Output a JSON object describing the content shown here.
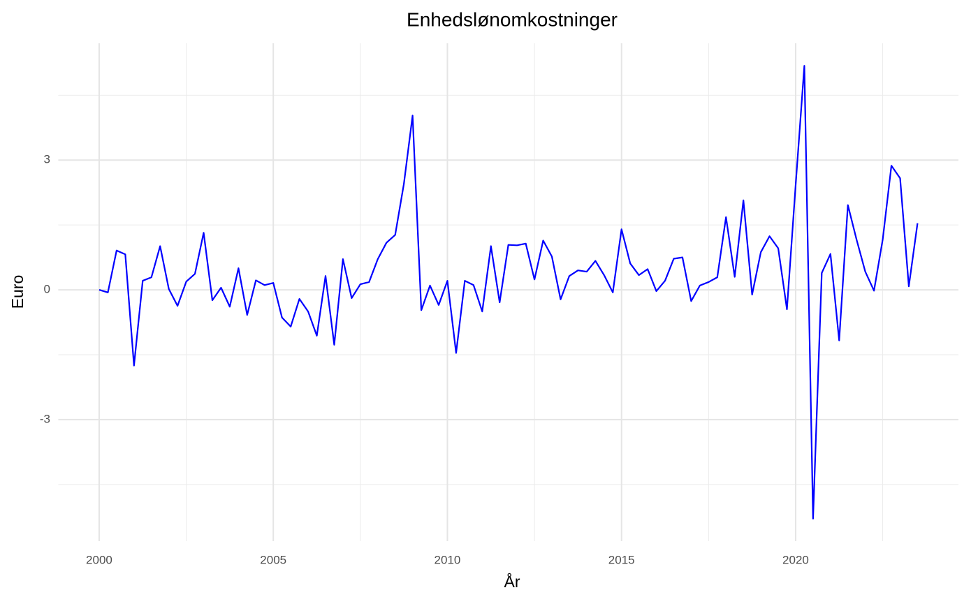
{
  "chart_data": {
    "type": "line",
    "title": "Enhedslønomkostninger",
    "x_label": "År",
    "y_label": "Euro",
    "x": [
      2000,
      2000.25,
      2000.5,
      2000.75,
      2001,
      2001.25,
      2001.5,
      2001.75,
      2002,
      2002.25,
      2002.5,
      2002.75,
      2003,
      2003.25,
      2003.5,
      2003.75,
      2004,
      2004.25,
      2004.5,
      2004.75,
      2005,
      2005.25,
      2005.5,
      2005.75,
      2006,
      2006.25,
      2006.5,
      2006.75,
      2007,
      2007.25,
      2007.5,
      2007.75,
      2008,
      2008.25,
      2008.5,
      2008.75,
      2009,
      2009.25,
      2009.5,
      2009.75,
      2010,
      2010.25,
      2010.5,
      2010.75,
      2011,
      2011.25,
      2011.5,
      2011.75,
      2012,
      2012.25,
      2012.5,
      2012.75,
      2013,
      2013.25,
      2013.5,
      2013.75,
      2014,
      2014.25,
      2014.5,
      2014.75,
      2015,
      2015.25,
      2015.5,
      2015.75,
      2016,
      2016.25,
      2016.5,
      2016.75,
      2017,
      2017.25,
      2017.5,
      2017.75,
      2018,
      2018.25,
      2018.5,
      2018.75,
      2019,
      2019.25,
      2019.5,
      2019.75,
      2020,
      2020.25,
      2020.5,
      2020.75,
      2021,
      2021.25,
      2021.5,
      2021.75,
      2022,
      2022.25,
      2022.5,
      2022.75,
      2023,
      2023.25,
      2023.5
    ],
    "series": [
      {
        "color": "#0000ff",
        "values": [
          0,
          -0.06,
          0.91,
          0.82,
          -1.75,
          0.21,
          0.29,
          1.01,
          0.02,
          -0.37,
          0.19,
          0.37,
          1.32,
          -0.24,
          0.05,
          -0.39,
          0.5,
          -0.58,
          0.22,
          0.11,
          0.16,
          -0.64,
          -0.85,
          -0.21,
          -0.5,
          -1.06,
          0.32,
          -1.27,
          0.71,
          -0.19,
          0.13,
          0.18,
          0.71,
          1.09,
          1.27,
          2.45,
          4.03,
          -0.47,
          0.1,
          -0.35,
          0.21,
          -1.46,
          0.21,
          0.11,
          -0.5,
          1.01,
          -0.29,
          1.04,
          1.03,
          1.07,
          0.24,
          1.14,
          0.77,
          -0.22,
          0.32,
          0.45,
          0.42,
          0.67,
          0.34,
          -0.06,
          1.4,
          0.61,
          0.34,
          0.48,
          -0.03,
          0.21,
          0.72,
          0.75,
          -0.26,
          0.1,
          0.18,
          0.29,
          1.68,
          0.3,
          2.07,
          -0.11,
          0.87,
          1.24,
          0.96,
          -0.45,
          2.42,
          5.18,
          -5.29,
          0.39,
          0.83,
          -1.17,
          1.96,
          1.16,
          0.42,
          -0.02,
          1.16,
          2.87,
          2.58,
          0.08,
          1.54
        ]
      }
    ],
    "xlim": [
      1998.825,
      2024.675
    ],
    "xticks": [
      2000,
      2005,
      2010,
      2015,
      2020
    ],
    "ylim": [
      -5.81,
      5.7
    ],
    "yticks": [
      -3,
      0,
      3
    ],
    "x_minor_grid": [
      2002.5,
      2007.5,
      2012.5,
      2017.5,
      2022.5
    ],
    "y_minor_grid": [
      -4.5,
      -1.5,
      1.5,
      4.5
    ],
    "grid": true
  }
}
